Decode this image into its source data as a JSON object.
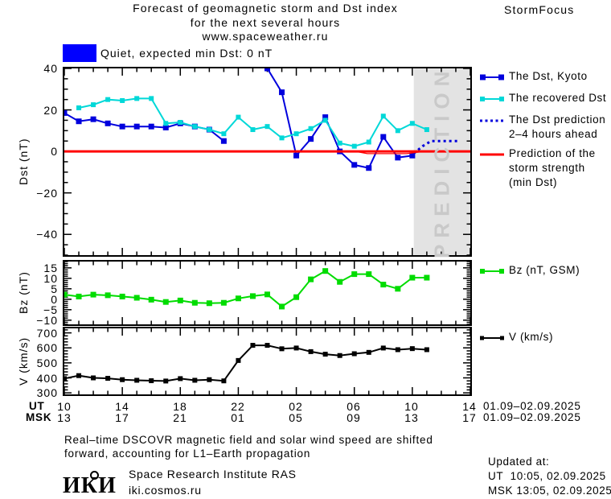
{
  "header": {
    "title1": "Forecast of geomagnetic storm and Dst index",
    "title2": "for the next several hours",
    "title3": "www.spaceweather.ru",
    "brand": "StormFocus"
  },
  "status_legend": {
    "label": "Quiet, expected min Dst: 0 nT",
    "box_color": "#0000ff"
  },
  "axis": {
    "ut_label": "UT",
    "msk_label": "MSK",
    "xticks": [
      {
        "ut": "10",
        "msk": "13"
      },
      {
        "ut": "14",
        "msk": "17"
      },
      {
        "ut": "18",
        "msk": "21"
      },
      {
        "ut": "22",
        "msk": "01"
      },
      {
        "ut": "02",
        "msk": "05"
      },
      {
        "ut": "06",
        "msk": "09"
      },
      {
        "ut": "10",
        "msk": "13"
      },
      {
        "ut": "14",
        "msk": "17"
      }
    ],
    "date_ut": "01.09–02.09.2025",
    "date_msk": "01.09–02.09.2025"
  },
  "legends": {
    "dst": [
      {
        "icon": "line-squares",
        "color": "#0000dd",
        "square": 7,
        "lines": [
          "The Dst, Kyoto"
        ]
      },
      {
        "icon": "line-squares",
        "color": "#00d8d8",
        "square": 6,
        "lines": [
          "The recovered Dst"
        ]
      },
      {
        "icon": "dotted-line",
        "color": "#0000dd",
        "square": 0,
        "lines": [
          "The Dst prediction",
          "2–4 hours ahead"
        ]
      },
      {
        "icon": "solid-line",
        "color": "#ff0000",
        "square": 0,
        "lines": [
          "Prediction of the",
          "storm strength",
          "(min Dst)"
        ]
      }
    ],
    "bz": {
      "icon": "line-squares",
      "color": "#00dc00",
      "square": 6,
      "label": "Bz (nT, GSM)"
    },
    "v": {
      "icon": "line-squares",
      "color": "#000000",
      "square": 5,
      "label": "V (km/s)"
    }
  },
  "chart_data": [
    {
      "id": "dst",
      "type": "line",
      "ylabel": "Dst (nT)",
      "x_unit": "hours from 10:00 UT 01.09.2025",
      "xlim_hours": [
        0,
        28
      ],
      "ylim": [
        -50,
        40
      ],
      "yticks": [
        40,
        20,
        0,
        -20,
        -40
      ],
      "yminor_step": 5,
      "xticks_hours": [
        0,
        4,
        8,
        12,
        16,
        20,
        24,
        28
      ],
      "xminor_step": 1,
      "prediction_band": {
        "start_hour": 24.1,
        "label": "PREDICTION",
        "fill": "#e3e3e3"
      },
      "series": [
        {
          "name": "The Dst, Kyoto",
          "color": "#0000dd",
          "width": 2,
          "marker": 7,
          "segments": [
            [
              [
                0,
                18.5
              ],
              [
                1,
                14.5
              ],
              [
                2,
                15.5
              ],
              [
                3,
                13.5
              ],
              [
                4,
                12
              ],
              [
                5,
                12
              ],
              [
                6,
                12
              ],
              [
                7,
                11.5
              ],
              [
                8,
                13.5
              ],
              [
                9,
                12
              ],
              [
                10,
                10.5
              ],
              [
                11,
                5
              ]
            ],
            [
              [
                13.6,
                60
              ],
              [
                14,
                40
              ],
              [
                15,
                28.5
              ],
              [
                16,
                -2
              ],
              [
                17,
                6
              ],
              [
                18,
                16.5
              ],
              [
                19,
                0
              ],
              [
                20,
                -6.5
              ],
              [
                21,
                -8
              ],
              [
                22,
                7
              ],
              [
                23,
                -3
              ],
              [
                24,
                -2
              ]
            ]
          ]
        },
        {
          "name": "The recovered Dst",
          "color": "#00d8d8",
          "width": 2,
          "marker": 6,
          "segments": [
            [
              [
                1,
                21
              ],
              [
                2,
                22.5
              ],
              [
                3,
                25
              ],
              [
                4,
                24.5
              ],
              [
                5,
                25.5
              ],
              [
                6,
                25.5
              ],
              [
                7,
                13.5
              ],
              [
                8,
                14
              ],
              [
                9,
                12
              ],
              [
                10,
                10.5
              ],
              [
                11,
                8.5
              ],
              [
                12,
                16.5
              ],
              [
                13,
                10.5
              ],
              [
                14,
                12
              ],
              [
                15,
                6.5
              ],
              [
                16,
                8.5
              ],
              [
                17,
                11
              ],
              [
                18,
                15
              ],
              [
                19,
                4
              ],
              [
                20,
                2.5
              ],
              [
                21,
                4.5
              ],
              [
                22,
                17
              ],
              [
                23,
                10
              ],
              [
                24,
                13.5
              ],
              [
                25,
                10.5
              ]
            ]
          ]
        },
        {
          "name": "The Dst prediction 2–4 hours ahead",
          "color": "#0000dd",
          "width": 3,
          "dash": "3 4",
          "segments": [
            [
              [
                24.1,
                -1
              ],
              [
                24.7,
                2.5
              ],
              [
                25.3,
                5
              ],
              [
                27.1,
                5
              ]
            ]
          ]
        },
        {
          "name": "Prediction of the storm strength (min Dst)",
          "color": "#ff0000",
          "width": 3,
          "segments": [
            [
              [
                0,
                0
              ],
              [
                28,
                0
              ]
            ]
          ]
        },
        {
          "name": "Prediction of the storm strength (slight dip detail)",
          "color": "#ff0000",
          "width": 1.2,
          "segments": [
            [
              [
                20.3,
                -0.3
              ],
              [
                20.9,
                -1.1
              ],
              [
                23.6,
                -1.1
              ],
              [
                24.6,
                -0.2
              ]
            ]
          ]
        }
      ]
    },
    {
      "id": "bz",
      "type": "line",
      "ylabel": "Bz (nT)",
      "x_unit": "hours from 10:00 UT 01.09.2025",
      "xlim_hours": [
        0,
        28
      ],
      "ylim": [
        -12,
        18
      ],
      "yticks": [
        15,
        10,
        5,
        0,
        -5,
        -10
      ],
      "yminor_step": 1,
      "xticks_hours": [
        0,
        4,
        8,
        12,
        16,
        20,
        24,
        28
      ],
      "xminor_step": 1,
      "series": [
        {
          "name": "Bz (nT, GSM)",
          "color": "#00dc00",
          "width": 2,
          "marker": 7,
          "segments": [
            [
              [
                0,
                2.2
              ],
              [
                1,
                1.3
              ],
              [
                2,
                2.2
              ],
              [
                3,
                1.9
              ],
              [
                4,
                1.3
              ],
              [
                5,
                0.7
              ],
              [
                6,
                -0.2
              ],
              [
                7,
                -1.3
              ],
              [
                8,
                -0.6
              ],
              [
                9,
                -1.7
              ],
              [
                10,
                -1.9
              ],
              [
                11,
                -1.7
              ],
              [
                12,
                0.4
              ],
              [
                13,
                1.5
              ],
              [
                14,
                2.3
              ],
              [
                15,
                -3.5
              ],
              [
                16,
                1
              ],
              [
                17,
                9.5
              ],
              [
                18,
                13.5
              ],
              [
                19,
                8.3
              ],
              [
                20,
                12
              ],
              [
                21,
                12
              ],
              [
                22,
                7
              ],
              [
                23,
                5
              ],
              [
                24,
                10.3
              ],
              [
                25,
                10.3
              ]
            ]
          ]
        }
      ]
    },
    {
      "id": "v",
      "type": "line",
      "ylabel": "V (km/s)",
      "x_unit": "hours from 10:00 UT 01.09.2025",
      "xlim_hours": [
        0,
        28
      ],
      "ylim": [
        290,
        730
      ],
      "yticks": [
        700,
        600,
        500,
        400,
        300
      ],
      "yminor_step": 20,
      "xticks_hours": [
        0,
        4,
        8,
        12,
        16,
        20,
        24,
        28
      ],
      "xminor_step": 1,
      "series": [
        {
          "name": "V (km/s)",
          "color": "#000000",
          "width": 2,
          "marker": 6,
          "segments": [
            [
              [
                0,
                395
              ],
              [
                1,
                415
              ],
              [
                2,
                400
              ],
              [
                3,
                397
              ],
              [
                4,
                388
              ],
              [
                5,
                384
              ],
              [
                6,
                381
              ],
              [
                7,
                379
              ],
              [
                8,
                395
              ],
              [
                9,
                384
              ],
              [
                10,
                388
              ],
              [
                11,
                380
              ],
              [
                12,
                516
              ],
              [
                13,
                617
              ],
              [
                14,
                617
              ],
              [
                15,
                594
              ],
              [
                16,
                599
              ],
              [
                17,
                575
              ],
              [
                18,
                558
              ],
              [
                19,
                549
              ],
              [
                20,
                561
              ],
              [
                21,
                570
              ],
              [
                22,
                599
              ],
              [
                23,
                588
              ],
              [
                24,
                595
              ],
              [
                25,
                588
              ]
            ]
          ]
        }
      ]
    }
  ],
  "footer": {
    "note1": "Real–time DSCOVR magnetic field and solar wind speed are shifted",
    "note2": "forward, accounting for L1–Earth propagation",
    "logo": "ИКИ",
    "inst1": "Space Research Institute RAS",
    "inst2": "iki.cosmos.ru",
    "updated_label": "Updated at:",
    "updated_ut": "UT  10:05, 02.09.2025",
    "updated_msk": "MSK 13:05, 02.09.2025"
  }
}
